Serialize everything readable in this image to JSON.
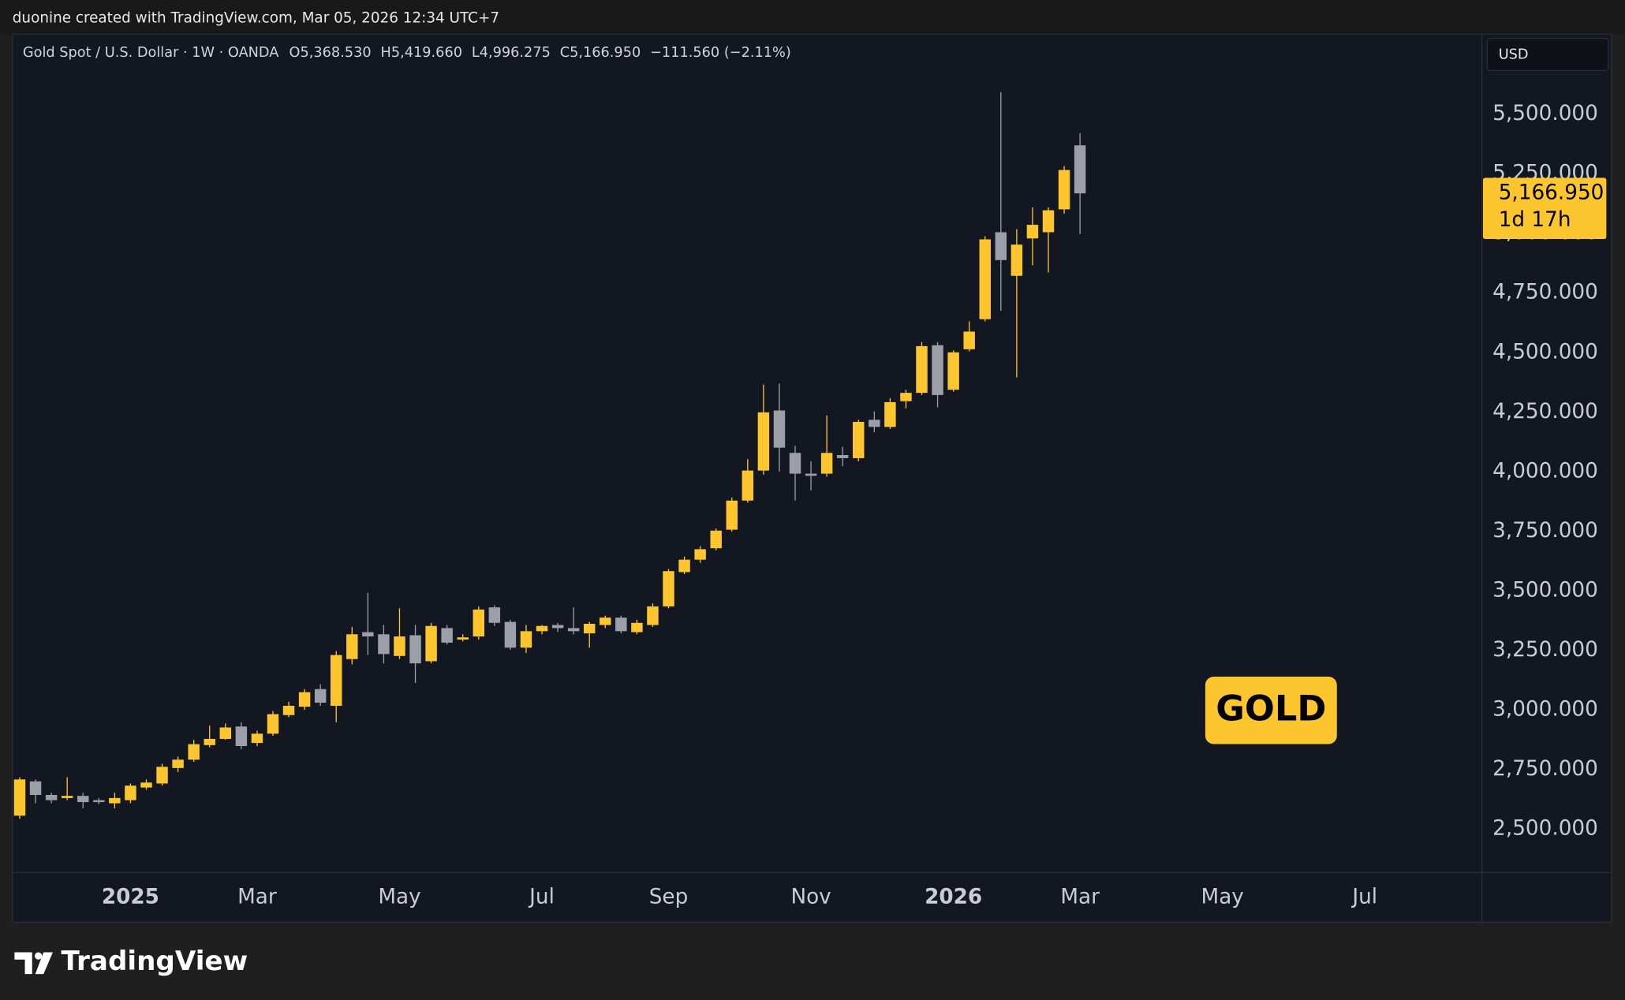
{
  "header": "duonine created with TradingView.com, Mar 05, 2026 12:34 UTC+7",
  "brand": "TradingView",
  "chart_data": {
    "type": "candlestick",
    "title": "Gold Spot / U.S. Dollar · 1W · OANDA",
    "legend_values": [
      {
        "key": "O",
        "value": "5,368.530"
      },
      {
        "key": "H",
        "value": "5,419.660"
      },
      {
        "key": "L",
        "value": "4,996.275"
      },
      {
        "key": "C",
        "value": "5,166.950"
      }
    ],
    "change": "−111.560 (−2.11%)",
    "currency": "USD",
    "annotation": "GOLD",
    "up_color": "#fdc62e",
    "down_color": "#9d9fa8",
    "open": [
      2556,
      2700,
      2643,
      2630,
      2639,
      2621,
      2608,
      2621,
      2674,
      2691,
      2756,
      2791,
      2852,
      2878,
      2930,
      2861,
      2900,
      2978,
      3013,
      3087,
      3017,
      3213,
      3326,
      3317,
      3226,
      3313,
      3204,
      3343,
      3295,
      3308,
      3430,
      3369,
      3261,
      3330,
      3356,
      3343,
      3321,
      3356,
      3387,
      3326,
      3356,
      3434,
      3578,
      3630,
      3678,
      3756,
      3878,
      4004,
      4256,
      4078,
      3991,
      3991,
      4069,
      4056,
      4217,
      4187,
      4295,
      4330,
      4530,
      4343,
      4513,
      4639,
      5004,
      4821,
      4978,
      5004,
      5100,
      5368.53
    ],
    "high": [
      2717,
      2708,
      2652,
      2717,
      2652,
      2630,
      2652,
      2691,
      2708,
      2774,
      2804,
      2874,
      2934,
      2943,
      2948,
      2913,
      2995,
      3034,
      3087,
      3108,
      3247,
      3348,
      3491,
      3356,
      3426,
      3356,
      3365,
      3356,
      3317,
      3434,
      3439,
      3378,
      3356,
      3356,
      3365,
      3430,
      3369,
      3395,
      3395,
      3378,
      3447,
      3591,
      3643,
      3687,
      3761,
      3891,
      4052,
      4365,
      4369,
      4108,
      4043,
      4235,
      4104,
      4217,
      4252,
      4308,
      4343,
      4543,
      4543,
      4508,
      4630,
      4987,
      5591,
      5017,
      5108,
      5108,
      5282,
      5419.66
    ],
    "low": [
      2543,
      2608,
      2608,
      2621,
      2587,
      2604,
      2587,
      2608,
      2665,
      2682,
      2739,
      2782,
      2843,
      2874,
      2835,
      2848,
      2891,
      2969,
      3000,
      3017,
      2948,
      3191,
      3230,
      3195,
      3213,
      3113,
      3195,
      3274,
      3287,
      3295,
      3352,
      3252,
      3239,
      3317,
      3326,
      3317,
      3261,
      3343,
      3321,
      3317,
      3348,
      3426,
      3569,
      3617,
      3669,
      3748,
      3869,
      3987,
      4000,
      3878,
      3921,
      3978,
      4022,
      4043,
      4165,
      4178,
      4265,
      4321,
      4269,
      4335,
      4504,
      4630,
      4674,
      4395,
      4865,
      4835,
      5082,
      4996.275
    ],
    "close": [
      2708,
      2643,
      2621,
      2639,
      2613,
      2613,
      2630,
      2682,
      2695,
      2761,
      2791,
      2856,
      2878,
      2926,
      2848,
      2900,
      2982,
      3017,
      3074,
      3030,
      3230,
      3317,
      3308,
      3234,
      3308,
      3195,
      3352,
      3282,
      3304,
      3421,
      3365,
      3261,
      3330,
      3352,
      3343,
      3330,
      3361,
      3387,
      3330,
      3365,
      3434,
      3582,
      3630,
      3674,
      3752,
      3878,
      4004,
      4248,
      4100,
      3991,
      3982,
      4078,
      4056,
      4208,
      4187,
      4291,
      4330,
      4526,
      4321,
      4500,
      4587,
      4974,
      4887,
      4952,
      5035,
      5096,
      5265,
      5166.95
    ],
    "xlim": [
      -0.46,
      92.4
    ],
    "xticks": [
      {
        "value": 7,
        "label": "2025"
      },
      {
        "value": 15,
        "label": "Mar"
      },
      {
        "value": 24,
        "label": "May"
      },
      {
        "value": 33,
        "label": "Jul"
      },
      {
        "value": 41,
        "label": "Sep"
      },
      {
        "value": 50,
        "label": "Nov"
      },
      {
        "value": 59,
        "label": "2026"
      },
      {
        "value": 67,
        "label": "Mar"
      },
      {
        "value": 76,
        "label": "May"
      },
      {
        "value": 85,
        "label": "Jul"
      }
    ],
    "ylim": [
      2317.4,
      5834.8
    ],
    "yticks": [
      {
        "value": 2500,
        "label": "2,500.000"
      },
      {
        "value": 2750,
        "label": "2,750.000"
      },
      {
        "value": 3000,
        "label": "3,000.000"
      },
      {
        "value": 3250,
        "label": "3,250.000"
      },
      {
        "value": 3500,
        "label": "3,500.000"
      },
      {
        "value": 3750,
        "label": "3,750.000"
      },
      {
        "value": 4000,
        "label": "4,000.000"
      },
      {
        "value": 4250,
        "label": "4,250.000"
      },
      {
        "value": 4500,
        "label": "4,500.000"
      },
      {
        "value": 4750,
        "label": "4,750.000"
      },
      {
        "value": 5000,
        "label": "5,000.000"
      },
      {
        "value": 5250,
        "label": "5,250.000"
      },
      {
        "value": 5500,
        "label": "5,500.000"
      }
    ],
    "last_price": {
      "value": 5166.95,
      "label": "5,166.950"
    },
    "countdown": "1d 17h"
  }
}
